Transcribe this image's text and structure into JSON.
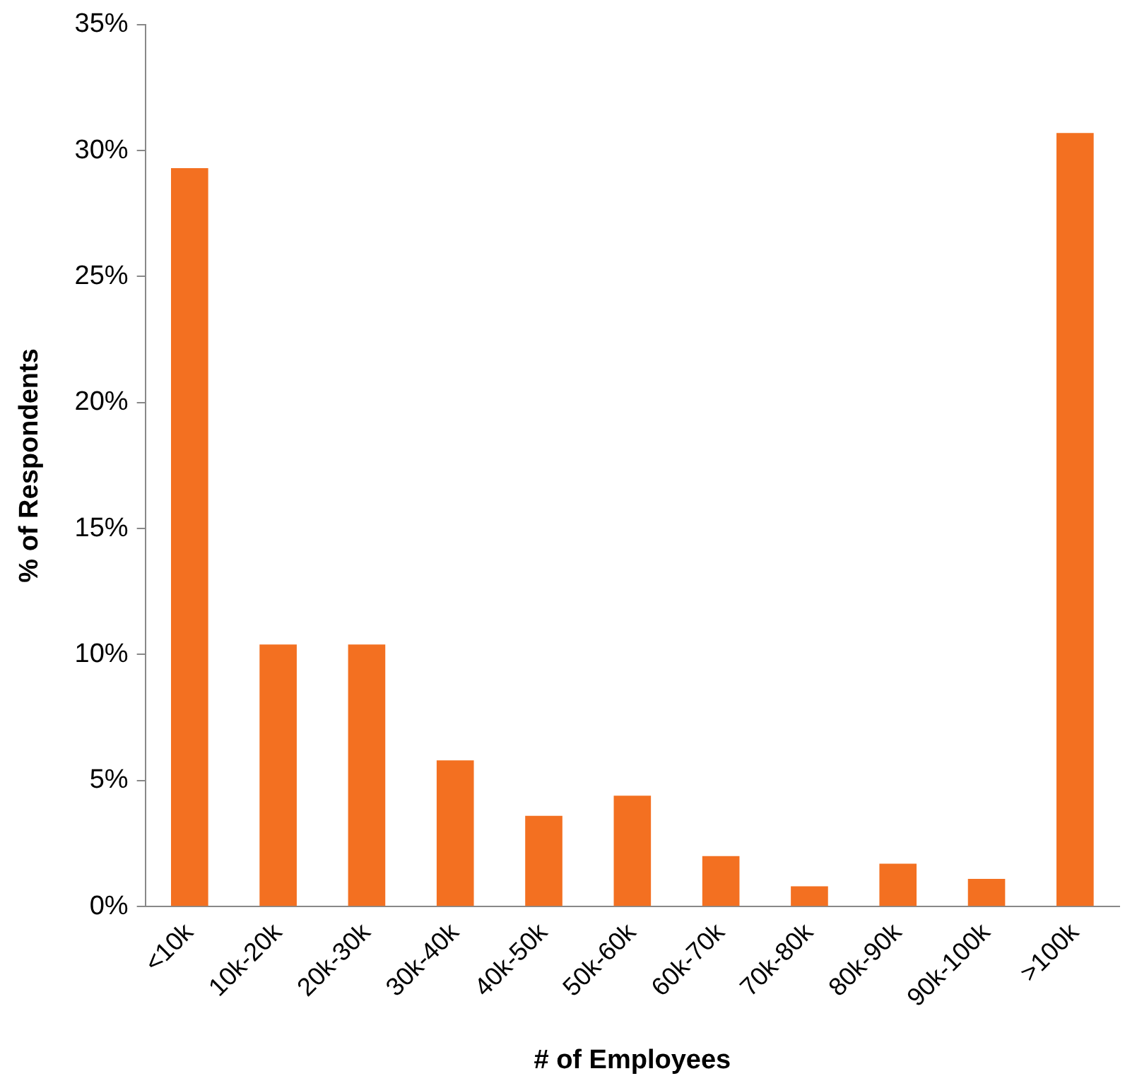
{
  "chart_data": {
    "type": "bar",
    "xlabel": "# of Employees",
    "ylabel": "% of Respondents",
    "categories": [
      "<10k",
      "10k-20k",
      "20k-30k",
      "30k-40k",
      "40k-50k",
      "50k-60k",
      "60k-70k",
      "70k-80k",
      "80k-90k",
      "90k-100k",
      ">100k"
    ],
    "values": [
      29.3,
      10.4,
      10.4,
      5.8,
      3.6,
      4.4,
      2.0,
      0.8,
      1.7,
      1.1,
      30.7
    ],
    "color": "#f37021",
    "ylim": [
      0,
      35
    ],
    "yticks": [
      {
        "value": 0,
        "label": "0%"
      },
      {
        "value": 5,
        "label": "5%"
      },
      {
        "value": 10,
        "label": "10%"
      },
      {
        "value": 15,
        "label": "15%"
      },
      {
        "value": 20,
        "label": "20%"
      },
      {
        "value": 25,
        "label": "25%"
      },
      {
        "value": 30,
        "label": "30%"
      },
      {
        "value": 35,
        "label": "35%"
      }
    ],
    "grid": false,
    "legend": false
  }
}
